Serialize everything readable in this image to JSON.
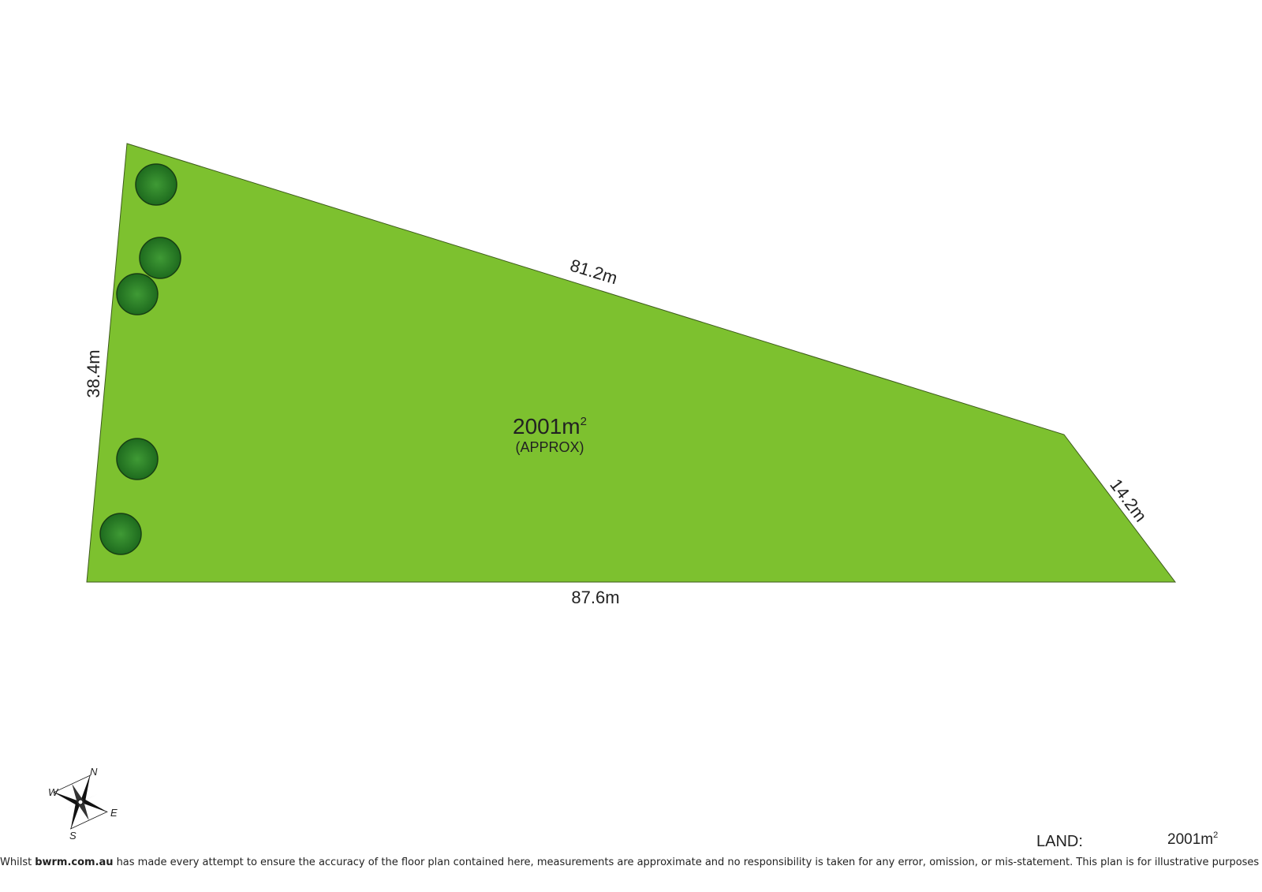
{
  "plan": {
    "dimensions": {
      "top": "81.2m",
      "left": "38.4m",
      "right": "14.2m",
      "bottom": "87.6m"
    },
    "area": {
      "value": "2001m",
      "superscript": "2",
      "note": "(APPROX)"
    },
    "compass": {
      "north": "N",
      "south": "S",
      "east": "E",
      "west": "W"
    },
    "summary": {
      "label": "LAND:",
      "value": "2001m",
      "superscript": "2"
    },
    "disclaimer": {
      "before": "Whilst",
      "site": "bwrm.com.au",
      "after": "has made every attempt to ensure the accuracy of the floor plan contained here, measurements are approximate and no responsibility is taken for any error, omission, or mis-statement. This plan is for illustrative purposes only."
    }
  }
}
